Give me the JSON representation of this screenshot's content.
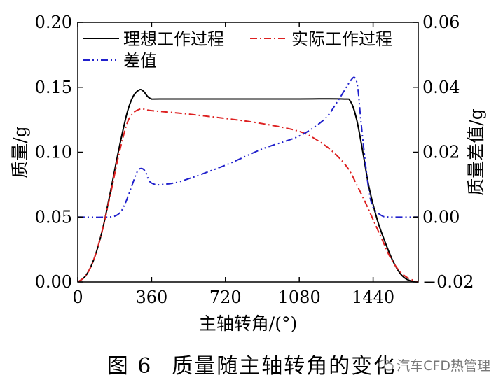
{
  "chart_data": {
    "type": "line",
    "xlabel": "主轴转角/(°)",
    "ylabel_left": "质量/g",
    "ylabel_right": "质量差值/g",
    "xlim": [
      0,
      1660
    ],
    "ylim_left": [
      0.0,
      0.2
    ],
    "ylim_right": [
      -0.02,
      0.06
    ],
    "xticks": [
      0,
      360,
      720,
      1080,
      1440
    ],
    "xtick_labels": [
      "0",
      "360",
      "720",
      "1080",
      "1440"
    ],
    "yticks_left": [
      0.0,
      0.05,
      0.1,
      0.15,
      0.2
    ],
    "ytick_labels_left": [
      "0.00",
      "0.05",
      "0.10",
      "0.15",
      "0.20"
    ],
    "yticks_right": [
      -0.02,
      0.0,
      0.02,
      0.04,
      0.06
    ],
    "ytick_labels_right": [
      "−0.02",
      "0.00",
      "0.02",
      "0.04",
      "0.06"
    ],
    "legend_position": "top",
    "series": [
      {
        "name": "理想工作过程",
        "axis": "left",
        "color": "#000000",
        "dash": "solid",
        "x": [
          0,
          40,
          80,
          120,
          160,
          200,
          240,
          270,
          300,
          320,
          340,
          360,
          400,
          720,
          1080,
          1290,
          1330,
          1360,
          1390,
          1420,
          1460,
          1500,
          1540,
          1580,
          1620,
          1660
        ],
        "y": [
          0.0,
          0.005,
          0.018,
          0.04,
          0.07,
          0.102,
          0.13,
          0.143,
          0.148,
          0.147,
          0.143,
          0.141,
          0.141,
          0.141,
          0.141,
          0.141,
          0.139,
          0.125,
          0.1,
          0.073,
          0.048,
          0.03,
          0.015,
          0.005,
          0.001,
          0.0
        ]
      },
      {
        "name": "实际工作过程",
        "axis": "left",
        "color": "#dd2020",
        "dash": "10,4,2,4",
        "x": [
          0,
          40,
          80,
          120,
          160,
          200,
          240,
          270,
          300,
          330,
          360,
          500,
          720,
          900,
          1080,
          1180,
          1260,
          1320,
          1360,
          1400,
          1440,
          1480,
          1520,
          1560,
          1600,
          1640,
          1660
        ],
        "y": [
          0.0,
          0.005,
          0.018,
          0.04,
          0.068,
          0.098,
          0.122,
          0.13,
          0.133,
          0.133,
          0.132,
          0.13,
          0.126,
          0.122,
          0.116,
          0.108,
          0.098,
          0.087,
          0.075,
          0.062,
          0.048,
          0.034,
          0.02,
          0.01,
          0.004,
          0.001,
          0.0
        ]
      },
      {
        "name": "差值",
        "axis": "right",
        "color": "#2020cc",
        "dash": "10,4,2,4,2,4",
        "x": [
          0,
          150,
          200,
          230,
          260,
          290,
          310,
          330,
          350,
          380,
          400,
          500,
          720,
          900,
          1080,
          1200,
          1260,
          1300,
          1330,
          1350,
          1365,
          1380,
          1400,
          1420,
          1440,
          1480,
          1520,
          1660
        ],
        "y": [
          0.0,
          0.0,
          0.001,
          0.004,
          0.009,
          0.014,
          0.015,
          0.014,
          0.011,
          0.01,
          0.01,
          0.011,
          0.016,
          0.021,
          0.025,
          0.03,
          0.035,
          0.039,
          0.042,
          0.043,
          0.04,
          0.03,
          0.018,
          0.008,
          0.003,
          0.0005,
          0.0,
          0.0
        ]
      }
    ]
  },
  "caption": {
    "number": "图 6",
    "title": "质量随主轴转角的变化"
  },
  "watermark": {
    "text": "汽车CFD热管理"
  }
}
